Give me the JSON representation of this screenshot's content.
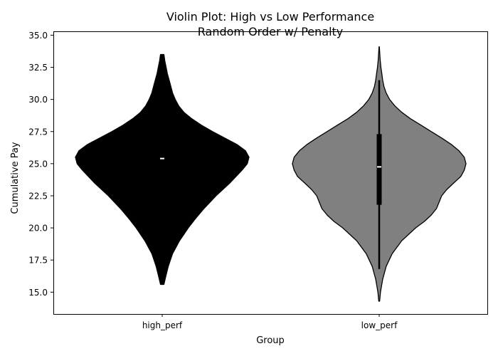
{
  "chart_data": {
    "type": "violin",
    "title": "Violin Plot: High vs Low Performance\nRandom Order w/ Penalty",
    "title_lines": [
      "Violin Plot: High vs Low Performance",
      "Random Order w/ Penalty"
    ],
    "xlabel": "Group",
    "ylabel": "Cumulative Pay",
    "categories": [
      "high_perf",
      "low_perf"
    ],
    "ylim": [
      13.3,
      35.3
    ],
    "yticks": [
      15.0,
      17.5,
      20.0,
      22.5,
      25.0,
      27.5,
      30.0,
      32.5,
      35.0
    ],
    "ytick_labels": [
      "15.0",
      "17.5",
      "20.0",
      "22.5",
      "25.0",
      "27.5",
      "30.0",
      "32.5",
      "35.0"
    ],
    "grid": false,
    "series": [
      {
        "category": "high_perf",
        "color": "#000000",
        "median": 25.4,
        "q1": 25.4,
        "q3": 25.4,
        "whisker_low": 25.4,
        "whisker_high": 25.4,
        "min": 15.6,
        "max": 33.5,
        "density_profile": [
          [
            15.6,
            0.02
          ],
          [
            16.2,
            0.04
          ],
          [
            17.0,
            0.07
          ],
          [
            18.0,
            0.12
          ],
          [
            19.0,
            0.2
          ],
          [
            20.0,
            0.3
          ],
          [
            20.7,
            0.38
          ],
          [
            21.5,
            0.48
          ],
          [
            22.5,
            0.62
          ],
          [
            23.5,
            0.78
          ],
          [
            24.5,
            0.92
          ],
          [
            25.0,
            0.98
          ],
          [
            25.5,
            1.0
          ],
          [
            26.0,
            0.96
          ],
          [
            26.5,
            0.86
          ],
          [
            27.0,
            0.72
          ],
          [
            27.5,
            0.58
          ],
          [
            28.0,
            0.45
          ],
          [
            28.5,
            0.34
          ],
          [
            29.0,
            0.25
          ],
          [
            29.5,
            0.19
          ],
          [
            30.0,
            0.15
          ],
          [
            30.5,
            0.12
          ],
          [
            31.0,
            0.1
          ],
          [
            31.5,
            0.08
          ],
          [
            32.0,
            0.06
          ],
          [
            32.5,
            0.045
          ],
          [
            33.0,
            0.03
          ],
          [
            33.5,
            0.02
          ]
        ]
      },
      {
        "category": "low_perf",
        "color": "#808080",
        "median": 24.75,
        "q1": 21.8,
        "q3": 27.3,
        "whisker_low": 16.8,
        "whisker_high": 31.5,
        "min": 14.3,
        "max": 34.1,
        "density_profile": [
          [
            14.3,
            0.005
          ],
          [
            15.0,
            0.015
          ],
          [
            16.0,
            0.04
          ],
          [
            17.0,
            0.08
          ],
          [
            18.0,
            0.15
          ],
          [
            19.0,
            0.26
          ],
          [
            20.0,
            0.42
          ],
          [
            20.5,
            0.52
          ],
          [
            21.0,
            0.6
          ],
          [
            21.5,
            0.66
          ],
          [
            22.0,
            0.69
          ],
          [
            22.5,
            0.72
          ],
          [
            23.0,
            0.78
          ],
          [
            23.5,
            0.86
          ],
          [
            24.0,
            0.94
          ],
          [
            24.5,
            0.98
          ],
          [
            25.0,
            1.0
          ],
          [
            25.5,
            0.98
          ],
          [
            26.0,
            0.92
          ],
          [
            26.5,
            0.83
          ],
          [
            27.0,
            0.72
          ],
          [
            27.5,
            0.6
          ],
          [
            28.0,
            0.48
          ],
          [
            28.5,
            0.36
          ],
          [
            29.0,
            0.26
          ],
          [
            29.5,
            0.18
          ],
          [
            30.0,
            0.12
          ],
          [
            30.5,
            0.08
          ],
          [
            31.0,
            0.055
          ],
          [
            31.5,
            0.04
          ],
          [
            32.0,
            0.03
          ],
          [
            32.5,
            0.02
          ],
          [
            33.0,
            0.012
          ],
          [
            34.1,
            0.002
          ]
        ]
      }
    ]
  }
}
